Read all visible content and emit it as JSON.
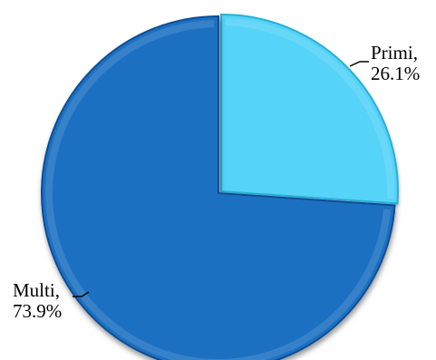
{
  "chart_data": {
    "type": "pie",
    "slices": [
      {
        "label": "Primi",
        "value": 26.1,
        "value_text": "26.1%",
        "color": "#55D3F8",
        "dark_color": "#2AAED8"
      },
      {
        "label": "Multi",
        "value": 73.9,
        "value_text": "73.9%",
        "color": "#1D6FC2",
        "dark_color": "#0F4E95"
      }
    ],
    "start_angle_deg": 0,
    "direction": "clockwise",
    "data_labels": {
      "show_category": true,
      "show_percent": true,
      "separator": ","
    },
    "legend": "none",
    "style": "3d bevel with drop shadow"
  }
}
